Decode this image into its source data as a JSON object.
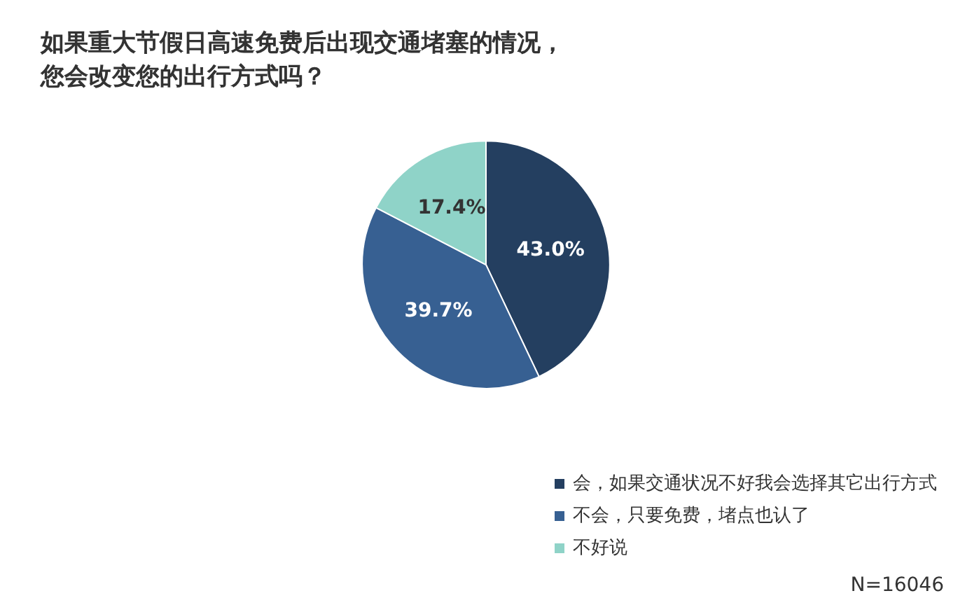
{
  "chart_data": {
    "type": "pie",
    "title": "如果重大节假日高速免费后出现交通堵塞的情况，您会改变您的出行方式吗？",
    "categories": [
      "会，如果交通状况不好我会选择其它出行方式",
      "不会，只要免费，堵点也认了",
      "不好说"
    ],
    "values": [
      43.0,
      39.7,
      17.4
    ],
    "colors": [
      "#243f60",
      "#376092",
      "#8fd3c8"
    ],
    "value_labels": [
      "43.0%",
      "39.7%",
      "17.4%"
    ],
    "legend": "bottom right",
    "annotations": [
      "N=16046"
    ]
  }
}
